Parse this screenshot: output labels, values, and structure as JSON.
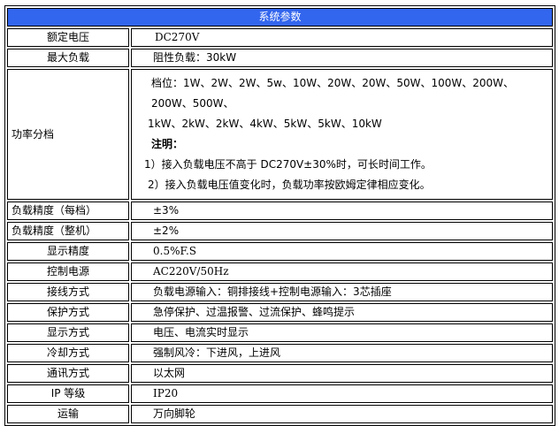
{
  "title": "系统参数",
  "rows": [
    {
      "label": "额定电压",
      "value": "DC270V"
    },
    {
      "label": "最大负载",
      "value": "阻性负载：30kW"
    },
    {
      "label": "功率分档",
      "gears": "档位：1W、2W、2W、5w、10W、20W、20W、50W、100W、200W、200W、500W、",
      "gears2": "1kW、2kW、2kW、4kW、5kW、5kW、10kW",
      "note_title": "注明：",
      "note1": "1）接入负载电压不高于 DC270V±30%时，可长时间工作。",
      "note2": "2）接入负载电压值变化时，负载功率按欧姆定律相应变化。"
    },
    {
      "label": "负载精度（每档）",
      "value": "±3%"
    },
    {
      "label": "负载精度（整机）",
      "value": "±2%"
    },
    {
      "label": "显示精度",
      "value": "0.5%F.S"
    },
    {
      "label": "控制电源",
      "value": "AC220V/50Hz"
    },
    {
      "label": "接线方式",
      "value": "负载电源输入：铜排接线+控制电源输入：3芯插座"
    },
    {
      "label": "保护方式",
      "value": "急停保护、过温报警、过流保护、蜂鸣提示"
    },
    {
      "label": "显示方式",
      "value": "电压、电流实时显示"
    },
    {
      "label": "冷却方式",
      "value": "强制风冷：下进风，上进风"
    },
    {
      "label": "通讯方式",
      "value": "以太网"
    },
    {
      "label": "IP 等级",
      "value": "IP20"
    },
    {
      "label": "运输",
      "value": "万向脚轮"
    }
  ]
}
